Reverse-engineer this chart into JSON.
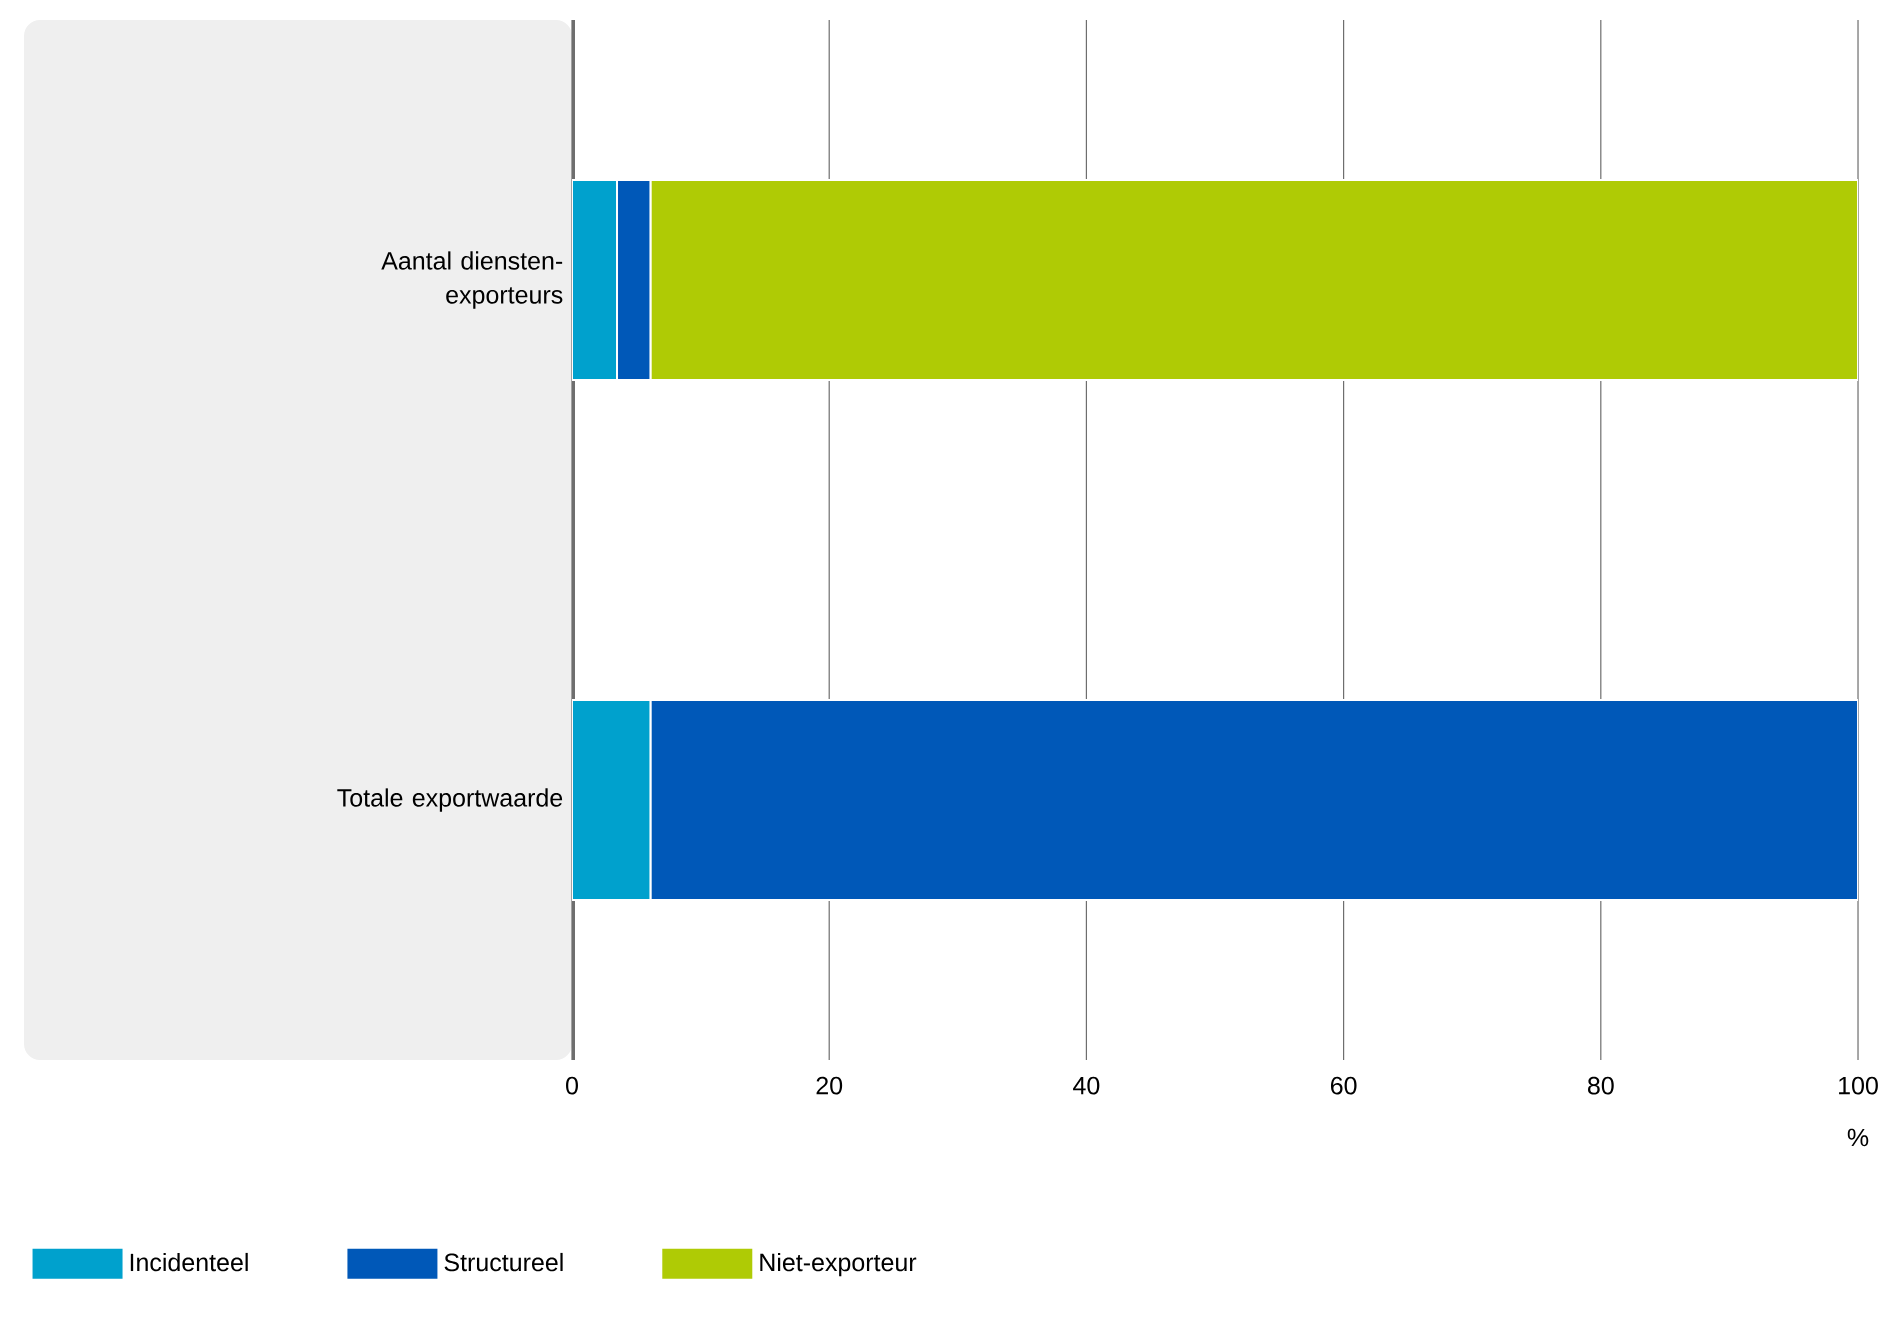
{
  "chart_data": {
    "type": "bar",
    "orientation": "horizontal",
    "stacked": true,
    "categories": [
      "Aantal diensten-exporteurs",
      "Totale exportwaarde"
    ],
    "series": [
      {
        "name": "Incidenteel",
        "color": "#00a1cd",
        "values": [
          3.5,
          6.1
        ]
      },
      {
        "name": "Structureel",
        "color": "#0058b8",
        "values": [
          2.6,
          93.9
        ]
      },
      {
        "name": "Niet-exporteur",
        "color": "#afcb05",
        "values": [
          93.9,
          null
        ]
      }
    ],
    "xlabel": "%",
    "xlim": [
      0,
      100
    ],
    "xticks": [
      0,
      20,
      40,
      60,
      80,
      100
    ],
    "grid": "x",
    "legend": "bottom"
  }
}
